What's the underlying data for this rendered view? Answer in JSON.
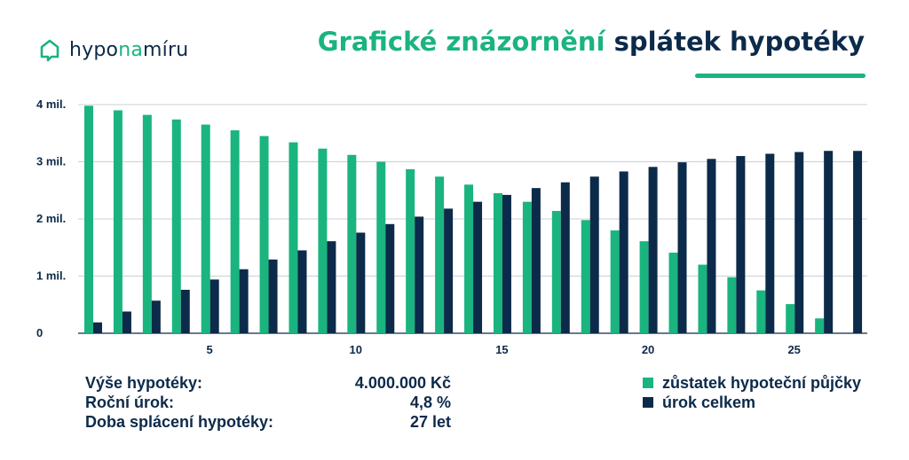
{
  "logo": {
    "part1": "hypo",
    "part2": "na",
    "part3": "míru"
  },
  "title": {
    "part1": "Grafické znázornění",
    "part2": "splátek hypotéky"
  },
  "colors": {
    "green": "#1ab47f",
    "navy": "#0c2a4a"
  },
  "info": [
    {
      "label": "Výše hypotéky:",
      "value": "4.000.000 Kč"
    },
    {
      "label": "Roční úrok:",
      "value": "4,8 %"
    },
    {
      "label": "Doba splácení hypotéky:",
      "value": "27 let"
    }
  ],
  "chart_data": {
    "type": "bar",
    "x": [
      1,
      2,
      3,
      4,
      5,
      6,
      7,
      8,
      9,
      10,
      11,
      12,
      13,
      14,
      15,
      16,
      17,
      18,
      19,
      20,
      21,
      22,
      23,
      24,
      25,
      26,
      27
    ],
    "xticks": [
      5,
      10,
      15,
      20,
      25
    ],
    "xtick_labels": [
      "5",
      "10",
      "15",
      "20",
      "25"
    ],
    "yticks": [
      0,
      1000000,
      2000000,
      3000000,
      4000000
    ],
    "ytick_labels": [
      "0",
      "1 mil.",
      "2 mil.",
      "3 mil.",
      "4 mil."
    ],
    "ylim": [
      0,
      4000000
    ],
    "grid": true,
    "legend_position": "bottom-right",
    "series": [
      {
        "name": "zůstatek hypoteční půjčky",
        "color": "#1ab47f",
        "values": [
          3980000,
          3900000,
          3820000,
          3740000,
          3650000,
          3550000,
          3450000,
          3340000,
          3230000,
          3120000,
          3000000,
          2870000,
          2740000,
          2600000,
          2450000,
          2300000,
          2140000,
          1980000,
          1800000,
          1610000,
          1410000,
          1200000,
          980000,
          750000,
          510000,
          260000,
          0
        ]
      },
      {
        "name": "úrok celkem",
        "color": "#0c2a4a",
        "values": [
          190000,
          380000,
          570000,
          760000,
          940000,
          1120000,
          1290000,
          1450000,
          1610000,
          1760000,
          1910000,
          2040000,
          2180000,
          2300000,
          2420000,
          2540000,
          2640000,
          2740000,
          2830000,
          2910000,
          2990000,
          3050000,
          3100000,
          3140000,
          3170000,
          3190000,
          3190000
        ]
      }
    ]
  }
}
